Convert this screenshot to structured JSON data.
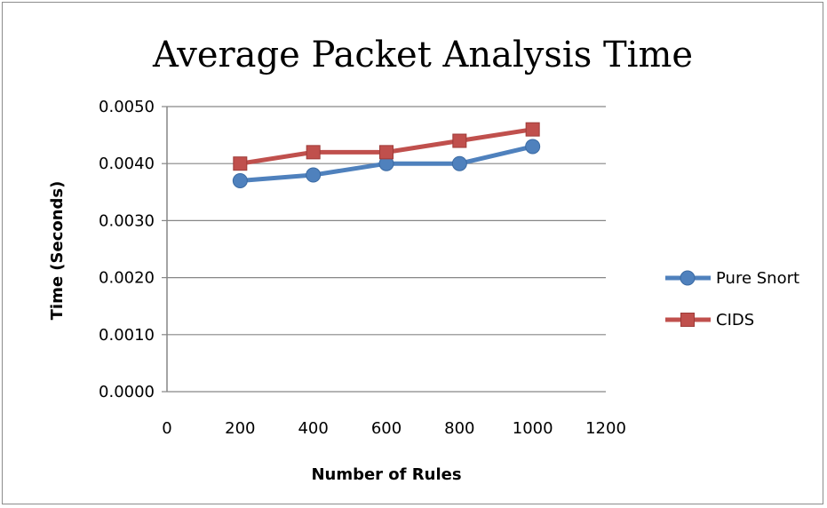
{
  "chart_data": {
    "type": "line",
    "title": "Average Packet Analysis Time",
    "xlabel": "Number of Rules",
    "ylabel": "Time (Seconds)",
    "xlim": [
      0,
      1200
    ],
    "ylim": [
      0,
      0.005
    ],
    "x_ticks": [
      "0",
      "200",
      "400",
      "600",
      "800",
      "1000",
      "1200"
    ],
    "y_ticks": [
      "0.0000",
      "0.0010",
      "0.0020",
      "0.0030",
      "0.0040",
      "0.0050"
    ],
    "grid": "horizontal",
    "legend_position": "right",
    "series": [
      {
        "name": "Pure Snort",
        "color": "#4f81bd",
        "marker": "circle",
        "x": [
          200,
          400,
          600,
          800,
          1000
        ],
        "y": [
          0.0037,
          0.0038,
          0.004,
          0.004,
          0.0043
        ]
      },
      {
        "name": "CIDS",
        "color": "#c0504d",
        "marker": "square",
        "x": [
          200,
          400,
          600,
          800,
          1000
        ],
        "y": [
          0.004,
          0.0042,
          0.0042,
          0.0044,
          0.0046
        ]
      }
    ]
  }
}
